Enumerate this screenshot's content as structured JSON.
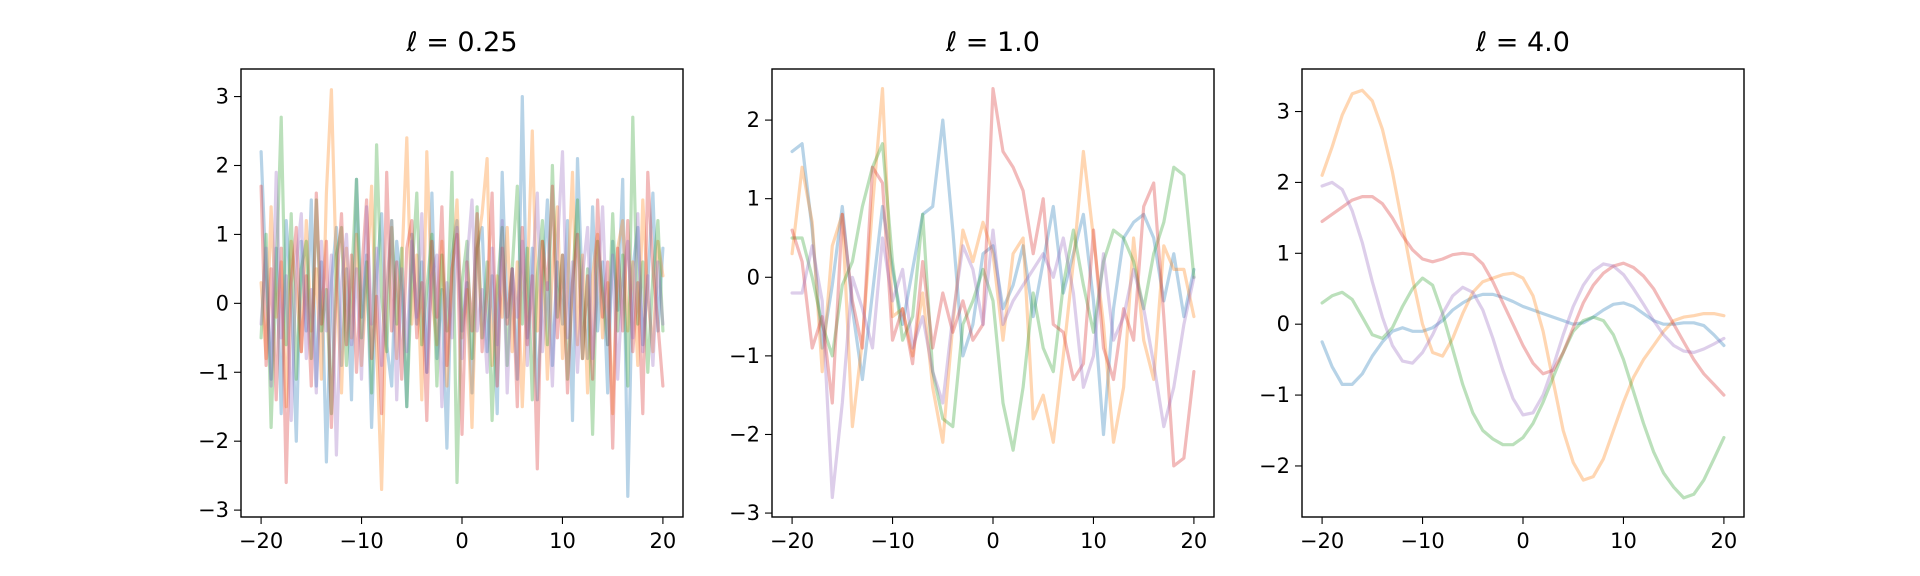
{
  "colors": [
    "#1f77b4",
    "#ff7f0e",
    "#2ca02c",
    "#d62728",
    "#9467bd"
  ],
  "chart_data": [
    {
      "type": "line",
      "title": "ℓ = 0.25",
      "xlim": [
        -22,
        22
      ],
      "ylim": [
        -3.1,
        3.4
      ],
      "xticks": [
        -20,
        -10,
        0,
        10,
        20
      ],
      "yticks": [
        -3,
        -2,
        -1,
        0,
        1,
        2,
        3
      ],
      "x": [
        -20,
        -19.5,
        -19,
        -18.5,
        -18,
        -17.5,
        -17,
        -16.5,
        -16,
        -15.5,
        -15,
        -14.5,
        -14,
        -13.5,
        -13,
        -12.5,
        -12,
        -11.5,
        -11,
        -10.5,
        -10,
        -9.5,
        -9,
        -8.5,
        -8,
        -7.5,
        -7,
        -6.5,
        -6,
        -5.5,
        -5,
        -4.5,
        -4,
        -3.5,
        -3,
        -2.5,
        -2,
        -1.5,
        -1,
        -0.5,
        0,
        0.5,
        1,
        1.5,
        2,
        2.5,
        3,
        3.5,
        4,
        4.5,
        5,
        5.5,
        6,
        6.5,
        7,
        7.5,
        8,
        8.5,
        9,
        9.5,
        10,
        10.5,
        11,
        11.5,
        12,
        12.5,
        13,
        13.5,
        14,
        14.5,
        15,
        15.5,
        16,
        16.5,
        17,
        17.5,
        18,
        18.5,
        19,
        19.5,
        20
      ],
      "series": [
        {
          "values": [
            2.2,
            0.4,
            -1.1,
            0.8,
            -1.6,
            1.2,
            0.1,
            -2.0,
            0.9,
            -0.4,
            1.5,
            -1.2,
            0.6,
            -2.3,
            0.3,
            1.1,
            -0.9,
            0.5,
            -1.4,
            1.8,
            -0.2,
            0.7,
            -1.8,
            0.4,
            1.3,
            -0.6,
            -1.2,
            0.9,
            0.2,
            -1.5,
            1.0,
            -0.3,
            0.6,
            -1.0,
            1.6,
            -0.8,
            0.2,
            -2.1,
            0.7,
            1.2,
            -0.4,
            0.3,
            -1.3,
            0.8,
            1.1,
            -0.7,
            0.4,
            -1.6,
            1.9,
            -0.2,
            0.5,
            -1.1,
            3.0,
            -0.5,
            0.8,
            -1.4,
            0.2,
            1.5,
            -0.9,
            0.6,
            -0.3,
            1.2,
            -1.7,
            2.1,
            0.1,
            -0.8,
            1.4,
            -0.4,
            0.6,
            -1.3,
            0.9,
            -0.1,
            1.8,
            -2.8,
            0.5,
            1.1,
            -0.6,
            0.3,
            1.6,
            -0.4,
            0.8
          ]
        },
        {
          "values": [
            0.3,
            -0.8,
            1.4,
            -0.2,
            0.6,
            -1.5,
            0.9,
            0.2,
            -0.7,
            1.2,
            -0.4,
            0.5,
            -1.1,
            1.6,
            3.1,
            0.4,
            -1.3,
            0.8,
            -0.5,
            1.0,
            -0.9,
            0.3,
            1.7,
            -0.6,
            -2.7,
            0.2,
            1.1,
            -0.8,
            0.5,
            2.4,
            -0.3,
            0.7,
            -1.4,
            2.2,
            0.1,
            -0.6,
            0.9,
            -1.2,
            0.4,
            1.5,
            -0.5,
            0.2,
            -1.8,
            0.8,
            1.3,
            2.1,
            -0.9,
            0.4,
            -0.2,
            1.1,
            -0.7,
            0.6,
            -1.5,
            0.3,
            2.5,
            -0.4,
            0.9,
            -1.1,
            0.5,
            1.4,
            -0.8,
            0.2,
            1.9,
            -0.6,
            0.7,
            -1.3,
            0.4,
            1.0,
            -0.5,
            0.3,
            -1.6,
            0.8,
            1.2,
            -0.4,
            0.6,
            -0.9,
            1.5,
            0.1,
            -0.7,
            0.9,
            0.4
          ]
        },
        {
          "values": [
            -0.5,
            1.0,
            -1.8,
            0.4,
            2.7,
            -0.6,
            1.3,
            -1.1,
            0.5,
            0.9,
            -0.8,
            1.5,
            -0.4,
            0.2,
            -1.6,
            0.7,
            1.1,
            -0.9,
            0.3,
            1.8,
            -0.5,
            0.6,
            -1.3,
            2.3,
            0.1,
            -0.7,
            1.2,
            -0.3,
            0.8,
            -1.5,
            0.4,
            1.6,
            -0.6,
            0.2,
            1.0,
            -1.2,
            0.7,
            -0.4,
            1.9,
            -2.6,
            0.3,
            0.9,
            -0.8,
            1.4,
            -0.5,
            0.6,
            -1.7,
            0.2,
            1.1,
            -0.9,
            0.5,
            1.7,
            -0.3,
            0.8,
            -1.4,
            0.4,
            1.2,
            -0.6,
            2.0,
            -0.2,
            0.7,
            -1.1,
            0.3,
            1.5,
            -0.8,
            0.5,
            -1.9,
            0.9,
            0.2,
            -0.6,
            1.3,
            -0.4,
            0.7,
            -1.2,
            2.7,
            -0.3,
            0.6,
            -1.0,
            0.4,
            1.2,
            -0.4
          ]
        },
        {
          "values": [
            1.7,
            -0.9,
            0.5,
            -1.4,
            0.8,
            -2.6,
            0.3,
            1.1,
            -0.7,
            0.4,
            -1.2,
            1.6,
            -0.3,
            0.9,
            -1.8,
            0.2,
            1.3,
            -0.6,
            0.7,
            -1.0,
            0.4,
            1.5,
            -0.8,
            0.1,
            -1.6,
            1.9,
            -0.4,
            0.6,
            -1.1,
            0.8,
            1.2,
            -0.5,
            0.3,
            -1.7,
            0.9,
            -0.2,
            1.4,
            -0.9,
            0.5,
            1.0,
            -1.9,
            0.6,
            -0.4,
            1.3,
            -0.7,
            0.2,
            1.6,
            -1.2,
            0.8,
            -0.3,
            0.5,
            -1.5,
            1.1,
            -0.6,
            0.4,
            -2.4,
            0.9,
            0.2,
            1.7,
            -0.5,
            0.7,
            -1.3,
            0.3,
            1.0,
            -0.8,
            0.4,
            -1.1,
            1.5,
            -0.2,
            0.6,
            -2.1,
            0.8,
            -0.4,
            1.2,
            -0.7,
            0.3,
            -1.6,
            1.9,
            0.5,
            -0.3,
            -1.2
          ]
        },
        {
          "values": [
            -0.3,
            0.8,
            -1.2,
            1.9,
            -0.5,
            0.4,
            -1.7,
            0.6,
            1.3,
            -0.8,
            0.2,
            -1.3,
            0.9,
            -0.4,
            0.7,
            -2.2,
            0.3,
            1.0,
            -0.6,
            0.5,
            -1.1,
            1.4,
            -0.3,
            0.8,
            -0.9,
            0.2,
            1.2,
            -1.4,
            0.5,
            -0.7,
            0.9,
            -0.2,
            1.3,
            -1.0,
            0.4,
            0.7,
            -1.5,
            0.3,
            -0.5,
            1.1,
            -0.8,
            0.6,
            1.5,
            -0.4,
            0.2,
            -1.0,
            0.8,
            -0.6,
            1.2,
            -1.3,
            0.5,
            -0.2,
            0.9,
            -0.9,
            0.4,
            1.6,
            -0.7,
            0.3,
            -1.2,
            0.8,
            2.2,
            -0.5,
            0.6,
            -1.0,
            0.4,
            1.1,
            -0.8,
            0.2,
            1.4,
            -0.6,
            0.7,
            -1.1,
            0.3,
            0.9,
            -0.5,
            1.3,
            -0.7,
            0.4,
            -0.9,
            0.6,
            -0.3
          ]
        }
      ]
    },
    {
      "type": "line",
      "title": "ℓ = 1.0",
      "xlim": [
        -22,
        22
      ],
      "ylim": [
        -3.05,
        2.65
      ],
      "xticks": [
        -20,
        -10,
        0,
        10,
        20
      ],
      "yticks": [
        -3,
        -2,
        -1,
        0,
        1,
        2
      ],
      "x": [
        -20,
        -19,
        -18,
        -17,
        -16,
        -15,
        -14,
        -13,
        -12,
        -11,
        -10,
        -9,
        -8,
        -7,
        -6,
        -5,
        -4,
        -3,
        -2,
        -1,
        0,
        1,
        2,
        3,
        4,
        5,
        6,
        7,
        8,
        9,
        10,
        11,
        12,
        13,
        14,
        15,
        16,
        17,
        18,
        19,
        20
      ],
      "series": [
        {
          "values": [
            1.6,
            1.7,
            0.6,
            -0.9,
            -0.1,
            0.9,
            -0.4,
            -1.3,
            -0.2,
            0.9,
            0.1,
            -0.6,
            0.1,
            0.8,
            0.9,
            2.0,
            0.6,
            -1.0,
            -0.6,
            0.3,
            0.4,
            -0.4,
            -0.1,
            0.4,
            -0.5,
            0.2,
            0.9,
            -0.2,
            0.3,
            0.8,
            -0.3,
            -2.0,
            -0.4,
            0.5,
            0.7,
            0.8,
            0.5,
            -0.3,
            0.3,
            -0.5,
            0.1
          ]
        },
        {
          "values": [
            0.3,
            1.4,
            0.7,
            -1.2,
            0.4,
            0.8,
            -1.9,
            -0.8,
            0.9,
            2.4,
            -0.5,
            -0.4,
            -1.0,
            -0.2,
            -1.4,
            -2.1,
            -0.6,
            0.6,
            0.2,
            0.7,
            0.3,
            -0.8,
            0.3,
            0.5,
            -1.8,
            -1.5,
            -2.1,
            -1.0,
            0.2,
            1.6,
            0.5,
            -0.6,
            -2.1,
            -1.4,
            0.5,
            -0.8,
            -1.3,
            0.4,
            0.1,
            0.1,
            -0.5
          ]
        },
        {
          "values": [
            0.5,
            0.5,
            0.0,
            -0.6,
            -1.0,
            -0.1,
            0.2,
            0.9,
            1.4,
            1.7,
            0.2,
            -0.8,
            -0.5,
            0.8,
            -1.2,
            -1.8,
            -1.9,
            -0.6,
            -0.3,
            0.1,
            -0.3,
            -1.6,
            -2.2,
            -1.4,
            -0.2,
            -0.9,
            -1.2,
            -0.1,
            0.6,
            -0.1,
            -0.7,
            0.2,
            0.6,
            0.5,
            0.2,
            -0.4,
            0.3,
            0.7,
            1.4,
            1.3,
            0.0
          ]
        },
        {
          "values": [
            0.6,
            0.2,
            -0.9,
            -0.5,
            -1.6,
            0.8,
            -0.3,
            -0.9,
            1.4,
            1.2,
            -0.8,
            -0.4,
            -1.1,
            0.2,
            -0.9,
            -0.2,
            -0.7,
            -0.3,
            -0.8,
            -0.6,
            2.4,
            1.6,
            1.4,
            1.1,
            0.3,
            1.0,
            -0.6,
            -0.7,
            -1.3,
            -1.1,
            0.6,
            -0.9,
            -1.3,
            -0.4,
            -0.8,
            0.9,
            1.2,
            -0.5,
            -2.4,
            -2.3,
            -1.2
          ]
        },
        {
          "values": [
            -0.2,
            -0.2,
            0.4,
            -0.3,
            -2.8,
            -1.6,
            0.0,
            -0.4,
            -0.9,
            0.5,
            -0.3,
            0.1,
            -0.9,
            -0.5,
            -1.2,
            -1.6,
            -0.5,
            0.4,
            0.1,
            -0.6,
            0.6,
            -0.6,
            -0.3,
            -0.1,
            0.1,
            0.3,
            0.0,
            0.5,
            -0.2,
            -1.4,
            -1.0,
            0.3,
            -0.8,
            -0.5,
            0.1,
            -0.4,
            -1.1,
            -1.9,
            -1.4,
            -0.6,
            0.0
          ]
        }
      ]
    },
    {
      "type": "line",
      "title": "ℓ = 4.0",
      "xlim": [
        -22,
        22
      ],
      "ylim": [
        -2.72,
        3.6
      ],
      "xticks": [
        -20,
        -10,
        0,
        10,
        20
      ],
      "yticks": [
        -2,
        -1,
        0,
        1,
        2,
        3
      ],
      "x": [
        -20,
        -19,
        -18,
        -17,
        -16,
        -15,
        -14,
        -13,
        -12,
        -11,
        -10,
        -9,
        -8,
        -7,
        -6,
        -5,
        -4,
        -3,
        -2,
        -1,
        0,
        1,
        2,
        3,
        4,
        5,
        6,
        7,
        8,
        9,
        10,
        11,
        12,
        13,
        14,
        15,
        16,
        17,
        18,
        19,
        20
      ],
      "series": [
        {
          "values": [
            -0.25,
            -0.6,
            -0.85,
            -0.85,
            -0.7,
            -0.45,
            -0.25,
            -0.1,
            -0.05,
            -0.1,
            -0.1,
            -0.05,
            0.05,
            0.2,
            0.3,
            0.38,
            0.42,
            0.42,
            0.38,
            0.32,
            0.25,
            0.2,
            0.15,
            0.1,
            0.05,
            0.0,
            0.02,
            0.1,
            0.2,
            0.28,
            0.3,
            0.25,
            0.15,
            0.05,
            0.0,
            0.0,
            0.02,
            0.02,
            -0.02,
            -0.15,
            -0.3
          ]
        },
        {
          "values": [
            2.1,
            2.5,
            2.95,
            3.25,
            3.3,
            3.15,
            2.75,
            2.15,
            1.4,
            0.65,
            0.0,
            -0.4,
            -0.45,
            -0.2,
            0.15,
            0.45,
            0.6,
            0.65,
            0.7,
            0.72,
            0.65,
            0.4,
            -0.1,
            -0.8,
            -1.5,
            -1.95,
            -2.2,
            -2.15,
            -1.9,
            -1.5,
            -1.1,
            -0.75,
            -0.5,
            -0.3,
            -0.1,
            0.05,
            0.1,
            0.12,
            0.15,
            0.15,
            0.12
          ]
        },
        {
          "values": [
            0.3,
            0.4,
            0.45,
            0.35,
            0.1,
            -0.15,
            -0.2,
            -0.05,
            0.25,
            0.5,
            0.65,
            0.55,
            0.15,
            -0.35,
            -0.85,
            -1.25,
            -1.5,
            -1.62,
            -1.7,
            -1.7,
            -1.6,
            -1.4,
            -1.1,
            -0.75,
            -0.4,
            -0.1,
            0.05,
            0.1,
            0.05,
            -0.15,
            -0.5,
            -0.95,
            -1.4,
            -1.8,
            -2.1,
            -2.3,
            -2.45,
            -2.4,
            -2.2,
            -1.9,
            -1.6
          ]
        },
        {
          "values": [
            1.45,
            1.55,
            1.65,
            1.75,
            1.8,
            1.8,
            1.7,
            1.5,
            1.25,
            1.05,
            0.92,
            0.88,
            0.92,
            0.98,
            1.0,
            0.98,
            0.85,
            0.6,
            0.3,
            0.0,
            -0.3,
            -0.55,
            -0.7,
            -0.65,
            -0.4,
            -0.05,
            0.3,
            0.55,
            0.72,
            0.82,
            0.86,
            0.8,
            0.68,
            0.5,
            0.25,
            0.0,
            -0.25,
            -0.5,
            -0.7,
            -0.85,
            -1.0
          ]
        },
        {
          "values": [
            1.95,
            2.0,
            1.9,
            1.6,
            1.15,
            0.6,
            0.1,
            -0.3,
            -0.52,
            -0.55,
            -0.4,
            -0.15,
            0.15,
            0.4,
            0.52,
            0.45,
            0.2,
            -0.2,
            -0.65,
            -1.05,
            -1.28,
            -1.25,
            -1.0,
            -0.6,
            -0.15,
            0.25,
            0.55,
            0.75,
            0.85,
            0.82,
            0.7,
            0.5,
            0.28,
            0.05,
            -0.15,
            -0.3,
            -0.38,
            -0.4,
            -0.35,
            -0.28,
            -0.2
          ]
        }
      ]
    }
  ]
}
